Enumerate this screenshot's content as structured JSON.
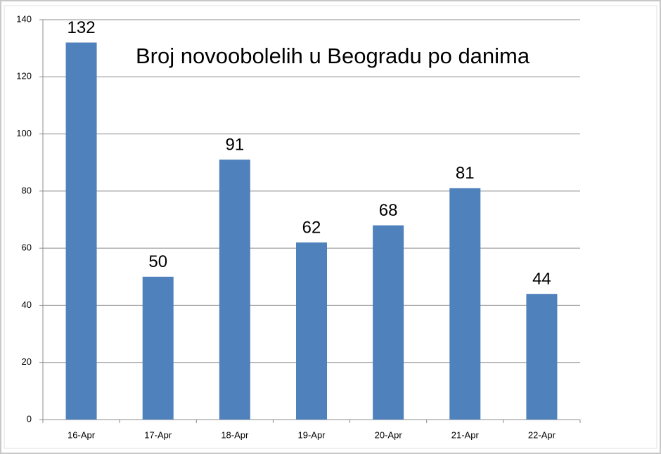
{
  "chart_data": {
    "type": "bar",
    "title": "Broj novoobolelih u Beogradu po danima",
    "categories": [
      "16-Apr",
      "17-Apr",
      "18-Apr",
      "19-Apr",
      "20-Apr",
      "21-Apr",
      "22-Apr"
    ],
    "values": [
      132,
      50,
      91,
      62,
      68,
      81,
      44
    ],
    "color": "#4f81bd",
    "ylim": [
      0,
      140
    ],
    "yticks": [
      0,
      20,
      40,
      60,
      80,
      100,
      120,
      140
    ],
    "grid": true
  }
}
